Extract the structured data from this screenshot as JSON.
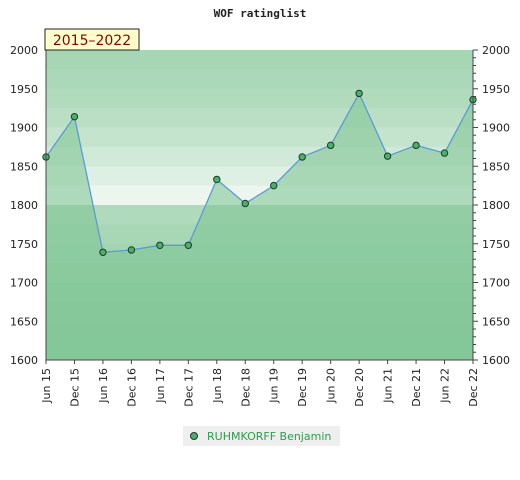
{
  "chart_data": {
    "type": "area",
    "title": "WOF ratinglist",
    "badge": "2015–2022",
    "categories": [
      "Jun 15",
      "Dec 15",
      "Jun 16",
      "Dec 16",
      "Jun 17",
      "Dec 17",
      "Jun 18",
      "Dec 18",
      "Jun 19",
      "Dec 19",
      "Jun 20",
      "Dec 20",
      "Jun 21",
      "Dec 21",
      "Jun 22",
      "Dec 22"
    ],
    "series": [
      {
        "name": "RUHMKORFF Benjamin",
        "values": [
          1862,
          1914,
          1739,
          1742,
          1748,
          1748,
          1833,
          1802,
          1825,
          1862,
          1877,
          1944,
          1863,
          1877,
          1867,
          1936
        ]
      }
    ],
    "ylim": [
      1600,
      2000
    ],
    "yticks": [
      1600,
      1650,
      1700,
      1750,
      1800,
      1850,
      1900,
      1950,
      2000
    ],
    "grid": false,
    "legend_position": "bottom",
    "colors": {
      "line": "#5b9bd5",
      "marker": "#4caf6a",
      "area": "#7cc391",
      "band_dark": "#7cc391",
      "band_light": "#f2f8f3"
    }
  }
}
